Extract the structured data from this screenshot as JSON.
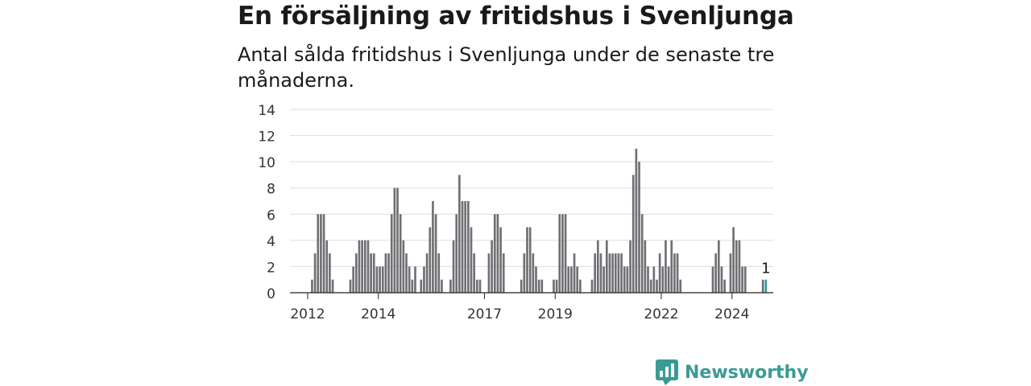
{
  "title": "En försäljning av fritidshus i Svenljunga",
  "subtitle": "Antal sålda fritidshus i Svenljunga under de senaste tre månaderna.",
  "brand": {
    "name": "Newsworthy",
    "icon": "chart-logo-icon"
  },
  "colors": {
    "bar": "#6f6f74",
    "highlight": "#2b9c95",
    "grid": "#dddddd",
    "axis": "#222222",
    "brand": "#3a9b94"
  },
  "chart_data": {
    "type": "bar",
    "title": "En försäljning av fritidshus i Svenljunga",
    "subtitle": "Antal sålda fritidshus i Svenljunga under de senaste tre månaderna.",
    "xlabel": "",
    "ylabel": "",
    "ylim": [
      0,
      14
    ],
    "yticks": [
      0,
      2,
      4,
      6,
      8,
      10,
      12,
      14
    ],
    "x_range": [
      "2011-11",
      "2025-06"
    ],
    "xticks": [
      {
        "label": "2012",
        "month": "2012-05"
      },
      {
        "label": "2014",
        "month": "2014-05"
      },
      {
        "label": "2017",
        "month": "2017-05"
      },
      {
        "label": "2019",
        "month": "2019-05"
      },
      {
        "label": "2022",
        "month": "2022-05"
      },
      {
        "label": "2024",
        "month": "2024-05"
      }
    ],
    "grid": true,
    "legend": "none",
    "series": [
      {
        "values": [
          [
            "2012-06",
            1
          ],
          [
            "2012-07",
            3
          ],
          [
            "2012-08",
            6
          ],
          [
            "2012-09",
            6
          ],
          [
            "2012-10",
            6
          ],
          [
            "2012-11",
            4
          ],
          [
            "2012-12",
            3
          ],
          [
            "2013-01",
            1
          ],
          [
            "2013-07",
            1
          ],
          [
            "2013-08",
            2
          ],
          [
            "2013-09",
            3
          ],
          [
            "2013-10",
            4
          ],
          [
            "2013-11",
            4
          ],
          [
            "2013-12",
            4
          ],
          [
            "2014-01",
            4
          ],
          [
            "2014-02",
            3
          ],
          [
            "2014-03",
            3
          ],
          [
            "2014-04",
            2
          ],
          [
            "2014-05",
            2
          ],
          [
            "2014-06",
            2
          ],
          [
            "2014-07",
            3
          ],
          [
            "2014-08",
            3
          ],
          [
            "2014-09",
            6
          ],
          [
            "2014-10",
            8
          ],
          [
            "2014-11",
            8
          ],
          [
            "2014-12",
            6
          ],
          [
            "2015-01",
            4
          ],
          [
            "2015-02",
            3
          ],
          [
            "2015-03",
            2
          ],
          [
            "2015-04",
            1
          ],
          [
            "2015-05",
            2
          ],
          [
            "2015-07",
            1
          ],
          [
            "2015-08",
            2
          ],
          [
            "2015-09",
            3
          ],
          [
            "2015-10",
            5
          ],
          [
            "2015-11",
            7
          ],
          [
            "2015-12",
            6
          ],
          [
            "2016-01",
            3
          ],
          [
            "2016-02",
            1
          ],
          [
            "2016-05",
            1
          ],
          [
            "2016-06",
            4
          ],
          [
            "2016-07",
            6
          ],
          [
            "2016-08",
            9
          ],
          [
            "2016-09",
            7
          ],
          [
            "2016-10",
            7
          ],
          [
            "2016-11",
            7
          ],
          [
            "2016-12",
            5
          ],
          [
            "2017-01",
            3
          ],
          [
            "2017-02",
            1
          ],
          [
            "2017-03",
            1
          ],
          [
            "2017-06",
            3
          ],
          [
            "2017-07",
            4
          ],
          [
            "2017-08",
            6
          ],
          [
            "2017-09",
            6
          ],
          [
            "2017-10",
            5
          ],
          [
            "2017-11",
            3
          ],
          [
            "2018-05",
            1
          ],
          [
            "2018-06",
            3
          ],
          [
            "2018-07",
            5
          ],
          [
            "2018-08",
            5
          ],
          [
            "2018-09",
            3
          ],
          [
            "2018-10",
            2
          ],
          [
            "2018-11",
            1
          ],
          [
            "2018-12",
            1
          ],
          [
            "2019-04",
            1
          ],
          [
            "2019-05",
            1
          ],
          [
            "2019-06",
            6
          ],
          [
            "2019-07",
            6
          ],
          [
            "2019-08",
            6
          ],
          [
            "2019-09",
            2
          ],
          [
            "2019-10",
            2
          ],
          [
            "2019-11",
            3
          ],
          [
            "2019-12",
            2
          ],
          [
            "2020-01",
            1
          ],
          [
            "2020-05",
            1
          ],
          [
            "2020-06",
            3
          ],
          [
            "2020-07",
            4
          ],
          [
            "2020-08",
            3
          ],
          [
            "2020-09",
            2
          ],
          [
            "2020-10",
            4
          ],
          [
            "2020-11",
            3
          ],
          [
            "2020-12",
            3
          ],
          [
            "2021-01",
            3
          ],
          [
            "2021-02",
            3
          ],
          [
            "2021-03",
            3
          ],
          [
            "2021-04",
            2
          ],
          [
            "2021-05",
            2
          ],
          [
            "2021-06",
            4
          ],
          [
            "2021-07",
            9
          ],
          [
            "2021-08",
            11
          ],
          [
            "2021-09",
            10
          ],
          [
            "2021-10",
            6
          ],
          [
            "2021-11",
            4
          ],
          [
            "2021-12",
            2
          ],
          [
            "2022-01",
            1
          ],
          [
            "2022-02",
            2
          ],
          [
            "2022-03",
            1
          ],
          [
            "2022-04",
            3
          ],
          [
            "2022-05",
            2
          ],
          [
            "2022-06",
            4
          ],
          [
            "2022-07",
            2
          ],
          [
            "2022-08",
            4
          ],
          [
            "2022-09",
            3
          ],
          [
            "2022-10",
            3
          ],
          [
            "2022-11",
            1
          ],
          [
            "2023-10",
            2
          ],
          [
            "2023-11",
            3
          ],
          [
            "2023-12",
            4
          ],
          [
            "2024-01",
            2
          ],
          [
            "2024-02",
            1
          ],
          [
            "2024-04",
            3
          ],
          [
            "2024-05",
            5
          ],
          [
            "2024-06",
            4
          ],
          [
            "2024-07",
            4
          ],
          [
            "2024-08",
            2
          ],
          [
            "2024-09",
            2
          ],
          [
            "2025-03",
            1
          ],
          [
            "2025-04",
            1
          ]
        ]
      }
    ],
    "annotations": [
      {
        "month": "2025-04",
        "text": "1"
      }
    ]
  }
}
